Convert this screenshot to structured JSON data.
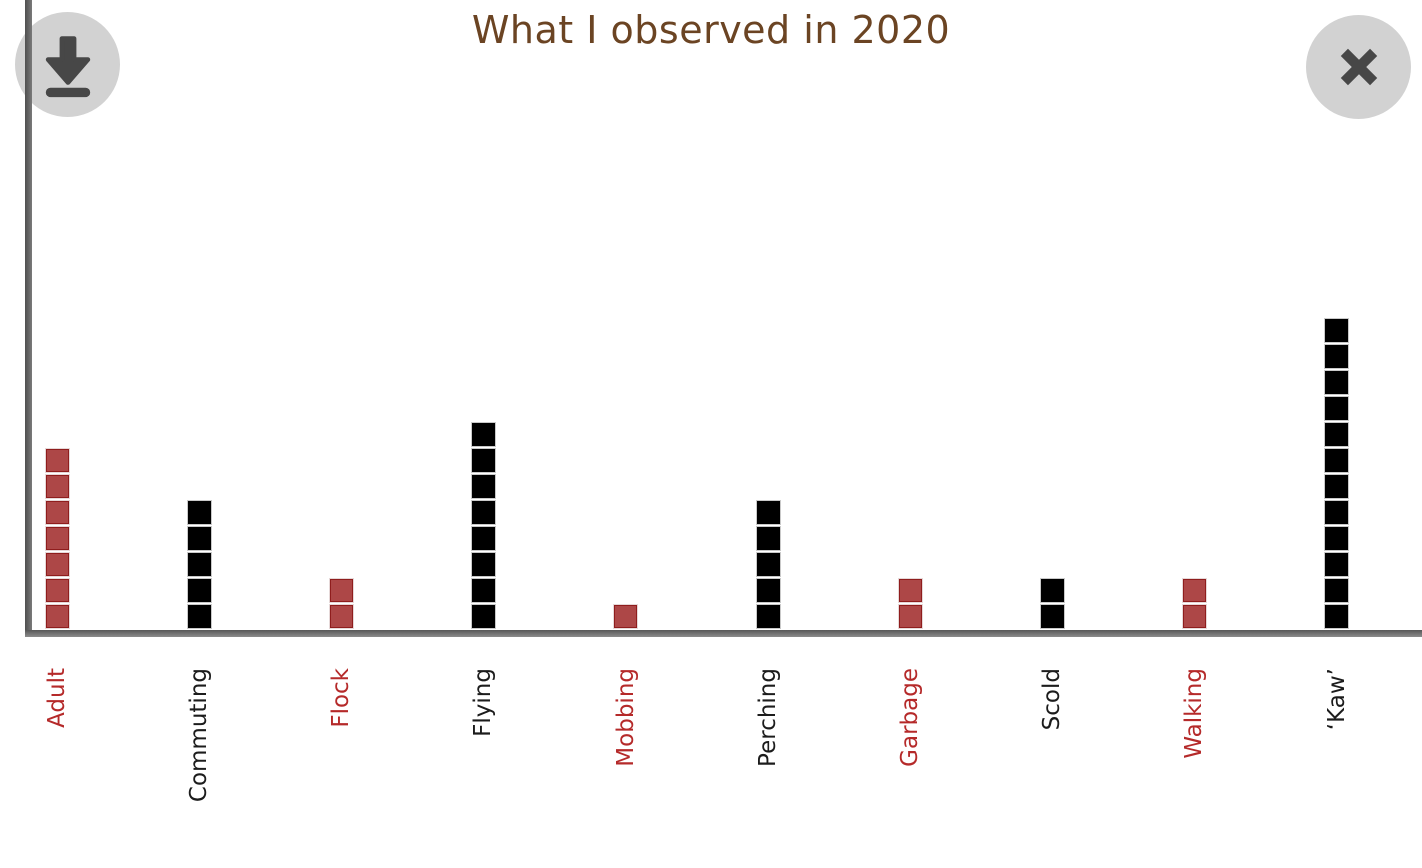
{
  "header": {
    "title": "What I observed in 2020",
    "title_color": "#6b4423"
  },
  "toolbar": {
    "download_button": {
      "icon": "download-icon"
    },
    "close_button": {
      "icon": "close-icon"
    },
    "button_bg": "#d2d2d2",
    "icon_color": "#474747"
  },
  "chart_data": {
    "type": "bar",
    "variant": "unit-chart: stacked squares, 1 square = 1 observation",
    "title": "What I observed in 2020",
    "categories": [
      "Adult",
      "Commuting",
      "Flock",
      "Flying",
      "Mobbing",
      "Perching",
      "Garbage",
      "Scold",
      "Walking",
      "‘Kaw’"
    ],
    "values": [
      7,
      5,
      2,
      8,
      1,
      5,
      2,
      2,
      2,
      12
    ],
    "category_colors": [
      "red",
      "black",
      "red",
      "black",
      "red",
      "black",
      "red",
      "black",
      "red",
      "black"
    ],
    "palette": {
      "red": {
        "fill": "#ad4747",
        "stroke": "#8f1d1d",
        "outline": "#e6d8d8",
        "label": "#b52a2a"
      },
      "black": {
        "fill": "#000000",
        "stroke": "#000000",
        "outline": "#c9c9c9",
        "label": "#1c1c1c"
      }
    },
    "xlabel": "",
    "ylabel": "",
    "x_tick_rotation": 90,
    "y_axis_ticks": [],
    "ylim": [
      0,
      12
    ],
    "grid": false,
    "legend": null,
    "axis_color": "#6b6b6b",
    "background": "#ffffff"
  }
}
